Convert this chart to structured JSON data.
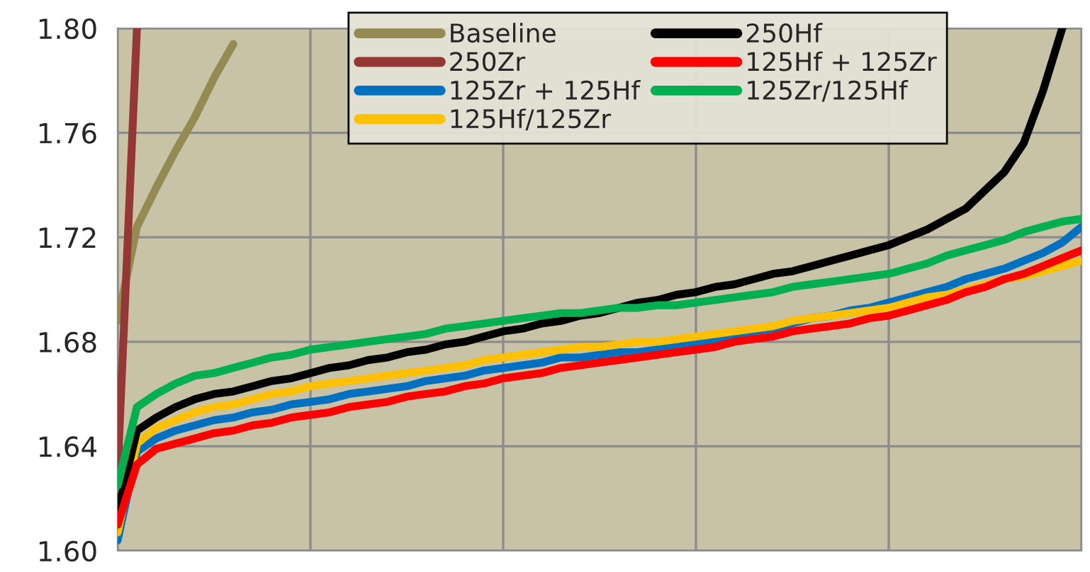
{
  "chart_data": {
    "type": "line",
    "categories": [
      null,
      null,
      null,
      null,
      null,
      null,
      null,
      null,
      null,
      null,
      null,
      null,
      null,
      null,
      null,
      null,
      null,
      null,
      null,
      null,
      null,
      null,
      null,
      null,
      null,
      null,
      null,
      null,
      null,
      null,
      null,
      null,
      null,
      null,
      null,
      null,
      null,
      null,
      null,
      null,
      null,
      null,
      null,
      null,
      null,
      null,
      null,
      null,
      null,
      null,
      null
    ],
    "ylim": [
      1.6,
      1.8
    ],
    "yticks": [
      {
        "value": 1.6,
        "label": "1.60"
      },
      {
        "value": 1.64,
        "label": "1.64"
      },
      {
        "value": 1.68,
        "label": "1.68"
      },
      {
        "value": 1.72,
        "label": "1.72"
      },
      {
        "value": 1.76,
        "label": "1.76"
      },
      {
        "value": 1.8,
        "label": "1.80"
      }
    ],
    "grid": true,
    "legend": "top",
    "marker": "none",
    "line_style": "solid",
    "series": [
      {
        "name": "Baseline",
        "color": "#948a54",
        "values": [
          1.688,
          1.724,
          1.739,
          1.753,
          1.766,
          1.781,
          1.794,
          null,
          null,
          null,
          null,
          null,
          null,
          null,
          null,
          null,
          null,
          null,
          null,
          null,
          null,
          null,
          null,
          null,
          null,
          null,
          null,
          null,
          null,
          null,
          null,
          null,
          null,
          null,
          null,
          null,
          null,
          null,
          null,
          null,
          null,
          null,
          null,
          null,
          null,
          null,
          null,
          null,
          null,
          null,
          null
        ]
      },
      {
        "name": "250Zr",
        "color": "#953735",
        "values": [
          1.63,
          1.8,
          null,
          null,
          null,
          null,
          null,
          null,
          null,
          null,
          null,
          null,
          null,
          null,
          null,
          null,
          null,
          null,
          null,
          null,
          null,
          null,
          null,
          null,
          null,
          null,
          null,
          null,
          null,
          null,
          null,
          null,
          null,
          null,
          null,
          null,
          null,
          null,
          null,
          null,
          null,
          null,
          null,
          null,
          null,
          null,
          null,
          null,
          null,
          null,
          null
        ]
      },
      {
        "name": "125Zr + 125Hf",
        "color": "#0070c0",
        "values": [
          1.604,
          1.638,
          1.643,
          1.646,
          1.648,
          1.65,
          1.651,
          1.653,
          1.654,
          1.656,
          1.657,
          1.658,
          1.66,
          1.661,
          1.662,
          1.663,
          1.665,
          1.666,
          1.667,
          1.669,
          1.67,
          1.671,
          1.672,
          1.674,
          1.674,
          1.675,
          1.676,
          1.676,
          1.677,
          1.678,
          1.679,
          1.681,
          1.682,
          1.684,
          1.685,
          1.687,
          1.689,
          1.69,
          1.692,
          1.693,
          1.695,
          1.697,
          1.699,
          1.701,
          1.704,
          1.706,
          1.708,
          1.711,
          1.714,
          1.718,
          1.724
        ]
      },
      {
        "name": "125Hf/125Zr",
        "color": "#ffc000",
        "values": [
          1.607,
          1.641,
          1.647,
          1.65,
          1.653,
          1.655,
          1.656,
          1.658,
          1.66,
          1.661,
          1.663,
          1.664,
          1.665,
          1.666,
          1.667,
          1.668,
          1.669,
          1.67,
          1.671,
          1.673,
          1.674,
          1.675,
          1.676,
          1.677,
          1.678,
          1.678,
          1.679,
          1.68,
          1.68,
          1.681,
          1.682,
          1.683,
          1.684,
          1.685,
          1.686,
          1.688,
          1.689,
          1.69,
          1.691,
          1.692,
          1.693,
          1.695,
          1.697,
          1.698,
          1.7,
          1.702,
          1.704,
          1.705,
          1.707,
          1.709,
          1.711
        ]
      },
      {
        "name": "250Hf",
        "color": "#000000",
        "values": [
          1.615,
          1.646,
          1.651,
          1.655,
          1.658,
          1.66,
          1.661,
          1.663,
          1.665,
          1.666,
          1.668,
          1.67,
          1.671,
          1.673,
          1.674,
          1.676,
          1.677,
          1.679,
          1.68,
          1.682,
          1.684,
          1.685,
          1.687,
          1.688,
          1.69,
          1.691,
          1.693,
          1.695,
          1.696,
          1.698,
          1.699,
          1.701,
          1.702,
          1.704,
          1.706,
          1.707,
          1.709,
          1.711,
          1.713,
          1.715,
          1.717,
          1.72,
          1.723,
          1.727,
          1.731,
          1.738,
          1.745,
          1.756,
          1.776,
          1.8,
          null
        ]
      },
      {
        "name": "125Hf + 125Zr",
        "color": "#ff0000",
        "values": [
          1.61,
          1.633,
          1.639,
          1.641,
          1.643,
          1.645,
          1.646,
          1.648,
          1.649,
          1.651,
          1.652,
          1.653,
          1.655,
          1.656,
          1.657,
          1.659,
          1.66,
          1.661,
          1.663,
          1.664,
          1.666,
          1.667,
          1.668,
          1.67,
          1.671,
          1.672,
          1.673,
          1.674,
          1.675,
          1.676,
          1.677,
          1.678,
          1.68,
          1.681,
          1.682,
          1.684,
          1.685,
          1.686,
          1.687,
          1.689,
          1.69,
          1.692,
          1.694,
          1.696,
          1.699,
          1.701,
          1.704,
          1.706,
          1.709,
          1.712,
          1.715
        ]
      },
      {
        "name": "125Zr/125Hf",
        "color": "#00b050",
        "values": [
          1.625,
          1.655,
          1.66,
          1.664,
          1.667,
          1.668,
          1.67,
          1.672,
          1.674,
          1.675,
          1.677,
          1.678,
          1.679,
          1.68,
          1.681,
          1.682,
          1.683,
          1.685,
          1.686,
          1.687,
          1.688,
          1.689,
          1.69,
          1.691,
          1.691,
          1.692,
          1.693,
          1.693,
          1.694,
          1.694,
          1.695,
          1.696,
          1.697,
          1.698,
          1.699,
          1.701,
          1.702,
          1.703,
          1.704,
          1.705,
          1.706,
          1.708,
          1.71,
          1.713,
          1.715,
          1.717,
          1.719,
          1.722,
          1.724,
          1.726,
          1.727
        ]
      }
    ]
  }
}
